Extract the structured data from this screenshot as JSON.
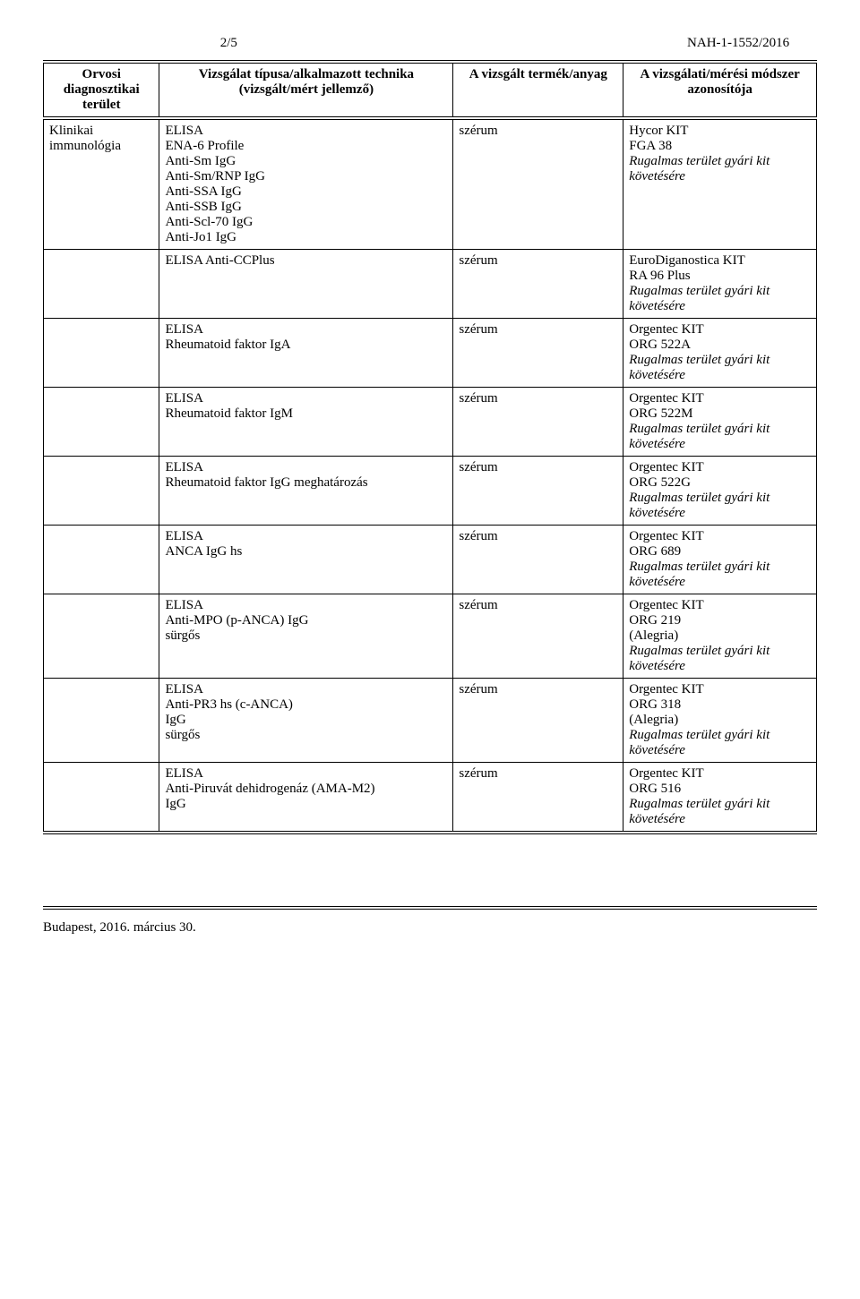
{
  "header": {
    "page_num": "2/5",
    "doc_id": "NAH-1-1552/2016"
  },
  "table": {
    "columns": [
      "Orvosi diagnosztikai terület",
      "Vizsgálat típusa/alkalmazott technika (vizsgált/mért jellemző)",
      "A vizsgált termék/anyag",
      "A vizsgálati/mérési módszer azonosítója"
    ],
    "col1_text": "Klinikai immunológia",
    "rows": [
      {
        "col2": "ELISA\nENA-6 Profile\nAnti-Sm IgG\nAnti-Sm/RNP IgG\nAnti-SSA IgG\nAnti-SSB IgG\nAnti-Scl-70 IgG\nAnti-Jo1 IgG",
        "col3": "szérum",
        "col4_plain": "Hycor KIT\nFGA 38",
        "col4_italic": "Rugalmas terület gyári kit követésére"
      },
      {
        "col2": "ELISA Anti-CCPlus",
        "col3": "szérum",
        "col4_plain": "EuroDiganostica KIT\nRA 96 Plus",
        "col4_italic": "Rugalmas terület gyári kit követésére"
      },
      {
        "col2": "ELISA\nRheumatoid faktor IgA",
        "col3": "szérum",
        "col4_plain": "Orgentec KIT\nORG 522A",
        "col4_italic": "Rugalmas terület gyári kit követésére"
      },
      {
        "col2": "ELISA\nRheumatoid faktor IgM",
        "col3": "szérum",
        "col4_plain": "Orgentec KIT\nORG 522M",
        "col4_italic": "Rugalmas terület gyári kit követésére"
      },
      {
        "col2": "ELISA\nRheumatoid faktor IgG meghatározás",
        "col3": "szérum",
        "col4_plain": "Orgentec KIT\nORG 522G",
        "col4_italic": "Rugalmas terület gyári kit követésére"
      },
      {
        "col2": "ELISA\nANCA IgG hs",
        "col3": "szérum",
        "col4_plain": "Orgentec KIT\nORG 689",
        "col4_italic": "Rugalmas terület gyári kit követésére"
      },
      {
        "col2": "ELISA\nAnti-MPO (p-ANCA) IgG\nsürgős",
        "col3": "szérum",
        "col4_plain": "Orgentec KIT\nORG 219\n(Alegria)",
        "col4_italic": "Rugalmas terület gyári kit követésére"
      },
      {
        "col2": "ELISA\nAnti-PR3 hs (c-ANCA)\nIgG\nsürgős",
        "col3": "szérum",
        "col4_plain": "Orgentec KIT\nORG 318\n(Alegria)",
        "col4_italic": "Rugalmas terület gyári kit követésére"
      },
      {
        "col2": "ELISA\nAnti-Piruvát dehidrogenáz (AMA-M2)\nIgG",
        "col3": "szérum",
        "col4_plain": "Orgentec KIT\nORG 516",
        "col4_italic": "Rugalmas terület gyári kit követésére"
      }
    ]
  },
  "footer": {
    "text": "Budapest, 2016. március 30."
  }
}
